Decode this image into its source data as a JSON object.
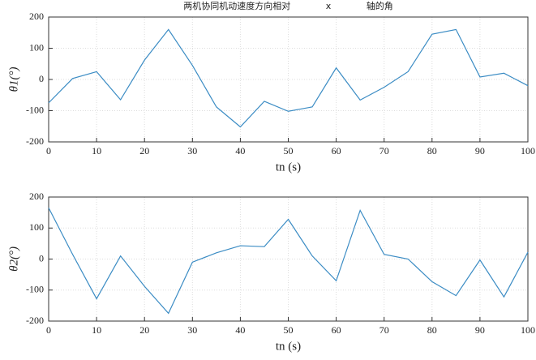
{
  "chart_data": [
    {
      "type": "line",
      "title": "两机协同机动速度方向相对 x 轴的角",
      "xlabel": "tn (s)",
      "ylabel": "θ1(°)",
      "x": [
        0,
        5,
        10,
        15,
        20,
        25,
        30,
        35,
        40,
        45,
        50,
        55,
        60,
        65,
        70,
        75,
        80,
        85,
        90,
        95,
        100
      ],
      "series": [
        {
          "color": "#3b8cc4",
          "values": [
            -75,
            3,
            25,
            -65,
            62,
            160,
            45,
            -88,
            -152,
            -70,
            -102,
            -88,
            37,
            -66,
            -25,
            25,
            145,
            160,
            8,
            20,
            -20
          ]
        }
      ],
      "xlim": [
        0,
        100
      ],
      "xticks": [
        0,
        10,
        20,
        30,
        40,
        50,
        60,
        70,
        80,
        90,
        100
      ],
      "ylim": [
        -200,
        200
      ],
      "yticks": [
        -200,
        -100,
        0,
        100,
        200
      ],
      "grid": true
    },
    {
      "type": "line",
      "xlabel": "tn (s)",
      "ylabel": "θ2(°)",
      "x": [
        0,
        5,
        10,
        15,
        20,
        25,
        30,
        35,
        40,
        45,
        50,
        55,
        60,
        65,
        70,
        75,
        80,
        85,
        90,
        95,
        100
      ],
      "series": [
        {
          "color": "#3b8cc4",
          "values": [
            165,
            15,
            -128,
            10,
            -88,
            -175,
            -10,
            20,
            43,
            40,
            128,
            10,
            -70,
            157,
            15,
            0,
            -73,
            -118,
            -3,
            -122,
            22
          ]
        }
      ],
      "xlim": [
        0,
        100
      ],
      "xticks": [
        0,
        10,
        20,
        30,
        40,
        50,
        60,
        70,
        80,
        90,
        100
      ],
      "ylim": [
        -200,
        200
      ],
      "yticks": [
        -200,
        -100,
        0,
        100,
        200
      ],
      "grid": true
    }
  ]
}
